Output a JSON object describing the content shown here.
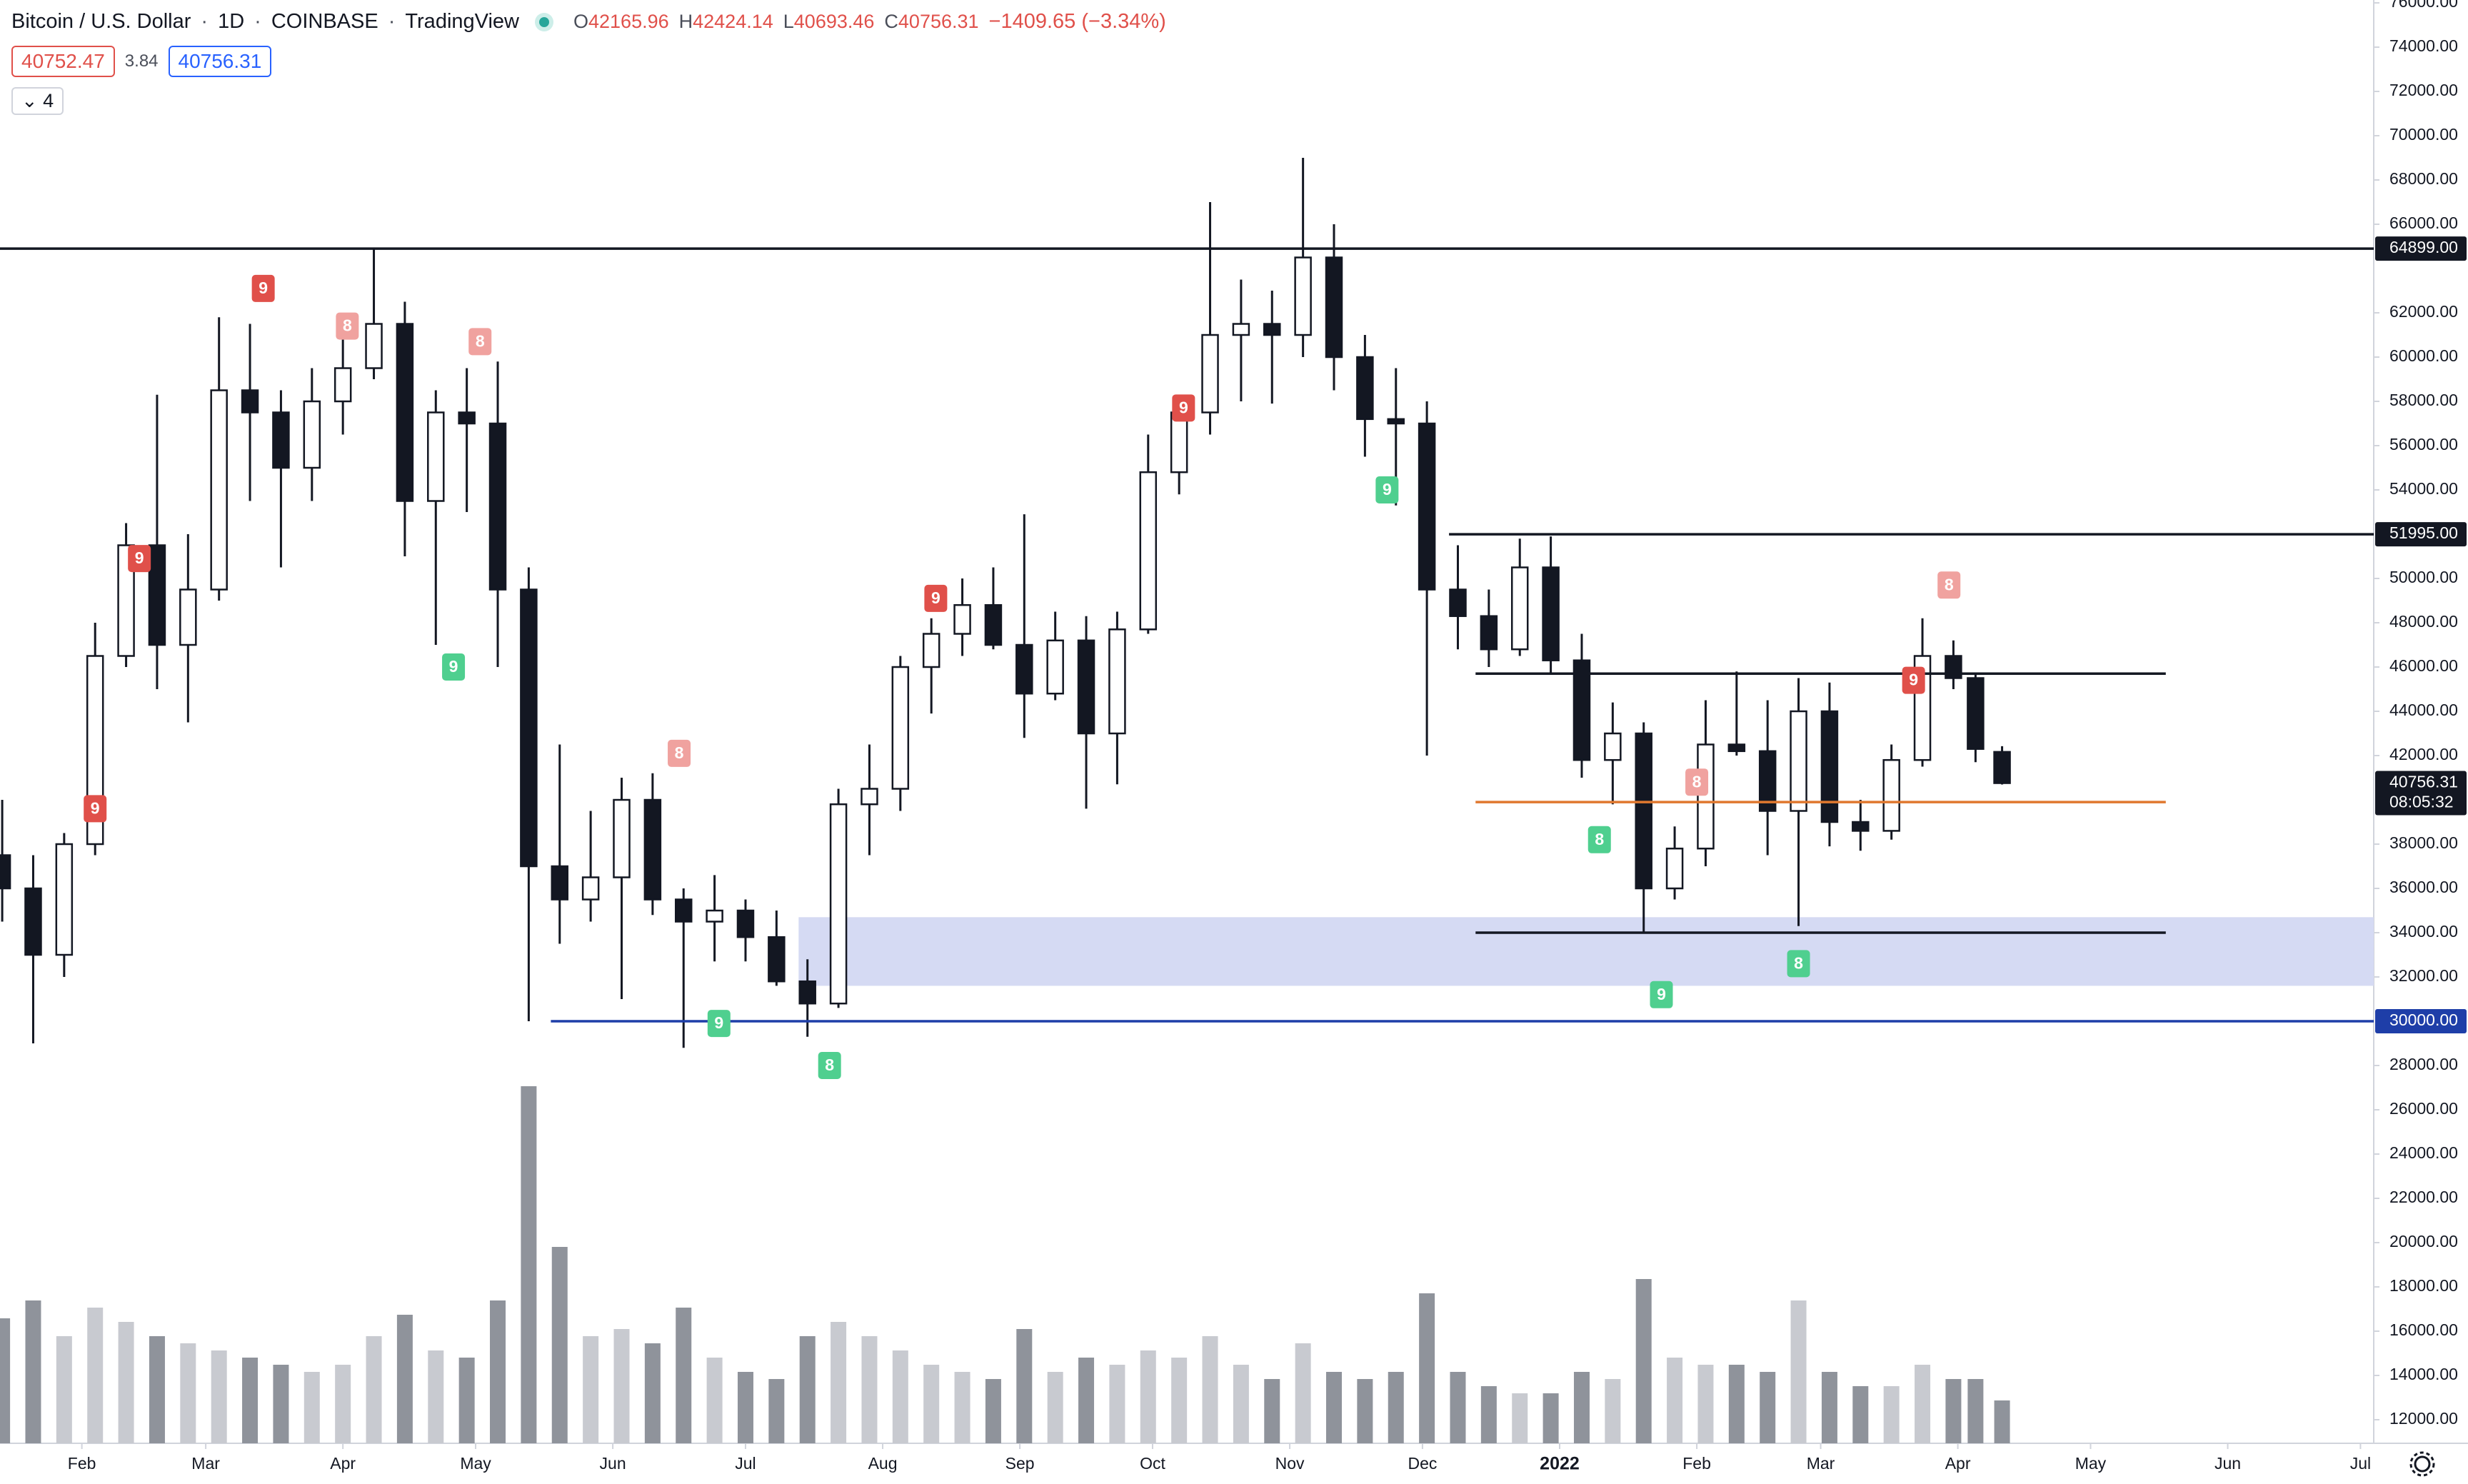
{
  "header": {
    "symbol": "Bitcoin / U.S. Dollar",
    "interval": "1D",
    "exchange": "COINBASE",
    "source": "TradingView",
    "ohlc": [
      {
        "label": "O",
        "value": "42165.96"
      },
      {
        "label": "H",
        "value": "42424.14"
      },
      {
        "label": "L",
        "value": "40693.46"
      },
      {
        "label": "C",
        "value": "40756.31"
      }
    ],
    "change": "−1409.65 (−3.34%)",
    "bid": "40752.47",
    "spread": "3.84",
    "ask": "40756.31",
    "indicators": "4"
  },
  "chart_data": {
    "type": "candlestick",
    "xlim": [
      -0.5,
      536
    ],
    "xticks": [
      {
        "value": 18,
        "label": "Feb"
      },
      {
        "value": 46,
        "label": "Mar"
      },
      {
        "value": 77,
        "label": "Apr"
      },
      {
        "value": 107,
        "label": "May"
      },
      {
        "value": 138,
        "label": "Jun"
      },
      {
        "value": 168,
        "label": "Jul"
      },
      {
        "value": 199,
        "label": "Aug"
      },
      {
        "value": 230,
        "label": "Sep"
      },
      {
        "value": 260,
        "label": "Oct"
      },
      {
        "value": 291,
        "label": "Nov"
      },
      {
        "value": 321,
        "label": "Dec"
      },
      352,
      {
        "value": 383,
        "label": "Feb"
      },
      {
        "value": 411,
        "label": "Mar"
      },
      {
        "value": 442,
        "label": "Apr"
      },
      {
        "value": 472,
        "label": "May"
      },
      {
        "value": 503,
        "label": "Jun"
      },
      {
        "value": 533,
        "label": "Jul"
      }
    ],
    "xtick_bold": [
      {
        "value": 352,
        "label": "2022"
      }
    ],
    "ylim": [
      10935,
      76130
    ],
    "yticks": [
      {
        "value": 12000,
        "label": "12000.00"
      },
      {
        "value": 14000,
        "label": "14000.00"
      },
      {
        "value": 16000,
        "label": "16000.00"
      },
      {
        "value": 18000,
        "label": "18000.00"
      },
      {
        "value": 20000,
        "label": "20000.00"
      },
      {
        "value": 22000,
        "label": "22000.00"
      },
      {
        "value": 24000,
        "label": "24000.00"
      },
      {
        "value": 26000,
        "label": "26000.00"
      },
      {
        "value": 28000,
        "label": "28000.00"
      },
      {
        "value": 32000,
        "label": "32000.00"
      },
      {
        "value": 34000,
        "label": "34000.00"
      },
      {
        "value": 36000,
        "label": "36000.00"
      },
      {
        "value": 38000,
        "label": "38000.00"
      },
      {
        "value": 42000,
        "label": "42000.00"
      },
      {
        "value": 44000,
        "label": "44000.00"
      },
      {
        "value": 46000,
        "label": "46000.00"
      },
      {
        "value": 48000,
        "label": "48000.00"
      },
      {
        "value": 50000,
        "label": "50000.00"
      },
      {
        "value": 54000,
        "label": "54000.00"
      },
      {
        "value": 56000,
        "label": "56000.00"
      },
      {
        "value": 58000,
        "label": "58000.00"
      },
      {
        "value": 60000,
        "label": "60000.00"
      },
      {
        "value": 62000,
        "label": "62000.00"
      },
      {
        "value": 66000,
        "label": "66000.00"
      },
      {
        "value": 68000,
        "label": "68000.00"
      },
      {
        "value": 70000,
        "label": "70000.00"
      },
      {
        "value": 72000,
        "label": "72000.00"
      },
      {
        "value": 74000,
        "label": "74000.00"
      },
      {
        "value": 76000,
        "label": "76000.00"
      }
    ],
    "up_color": "#ffffff",
    "down_color": "#131722",
    "wick_color": "#131722",
    "candles": {
      "x": [
        0,
        7,
        14,
        21,
        28,
        35,
        42,
        49,
        56,
        63,
        70,
        77,
        84,
        91,
        98,
        105,
        112,
        119,
        126,
        133,
        140,
        147,
        154,
        161,
        168,
        175,
        182,
        189,
        196,
        203,
        210,
        217,
        224,
        231,
        238,
        245,
        252,
        259,
        266,
        273,
        280,
        287,
        294,
        301,
        308,
        315,
        322,
        329,
        336,
        343,
        350,
        357,
        364,
        371,
        378,
        385,
        392,
        399,
        406,
        413,
        420,
        427,
        434,
        441,
        446,
        452
      ],
      "open": [
        37500,
        36000,
        33000,
        38000,
        46500,
        51500,
        47000,
        49500,
        58500,
        57500,
        55000,
        58000,
        59500,
        61500,
        53500,
        57500,
        57000,
        49500,
        37000,
        35500,
        36500,
        40000,
        35500,
        34500,
        35000,
        33800,
        31800,
        30800,
        39800,
        40500,
        46000,
        47500,
        48800,
        47000,
        44800,
        47200,
        43000,
        47700,
        54800,
        57500,
        61000,
        61500,
        61000,
        64500,
        60000,
        57200,
        57000,
        49500,
        48300,
        46800,
        50500,
        46300,
        41800,
        43000,
        36000,
        37800,
        42500,
        42200,
        39500,
        44000,
        39000,
        38600,
        41800,
        46500,
        45500,
        42165.96
      ],
      "high": [
        40000,
        37500,
        38500,
        48000,
        52500,
        58300,
        52000,
        61800,
        61500,
        58500,
        59500,
        61000,
        64900,
        62500,
        58500,
        59500,
        59800,
        50500,
        42500,
        39500,
        41000,
        41200,
        36000,
        36600,
        35500,
        35000,
        32800,
        40500,
        42500,
        46500,
        48200,
        50000,
        50500,
        52900,
        48500,
        48300,
        48500,
        56500,
        58000,
        67000,
        63500,
        63000,
        69000,
        66000,
        61000,
        59500,
        58000,
        51500,
        49500,
        51800,
        51900,
        47500,
        44400,
        43500,
        38800,
        44500,
        45800,
        44500,
        45500,
        45300,
        40000,
        42500,
        48200,
        47200,
        45700,
        42424.14
      ],
      "low": [
        34500,
        29000,
        32000,
        37500,
        46000,
        45000,
        43500,
        49000,
        53500,
        50500,
        53500,
        56500,
        59000,
        51000,
        47000,
        53000,
        46000,
        30000,
        33500,
        34500,
        31000,
        34800,
        28800,
        32700,
        32700,
        31600,
        29300,
        30600,
        37500,
        39500,
        43900,
        46500,
        46800,
        42800,
        44500,
        39600,
        40700,
        47500,
        53800,
        56500,
        58000,
        57900,
        60000,
        58500,
        55500,
        53300,
        42000,
        46800,
        46000,
        46500,
        45700,
        41000,
        39800,
        34000,
        35500,
        37000,
        42000,
        37500,
        34300,
        37900,
        37700,
        38200,
        41500,
        45000,
        41700,
        40693.46
      ],
      "close": [
        36000,
        33000,
        38000,
        46500,
        51500,
        47000,
        49500,
        58500,
        57500,
        55000,
        58000,
        59500,
        61500,
        53500,
        57500,
        57000,
        49500,
        37000,
        35500,
        36500,
        40000,
        35500,
        34500,
        35000,
        33800,
        31800,
        30800,
        39800,
        40500,
        46000,
        47500,
        48800,
        47000,
        44800,
        47200,
        43000,
        47700,
        54800,
        57500,
        61000,
        61500,
        61000,
        64500,
        60000,
        57200,
        57000,
        49500,
        48300,
        46800,
        50500,
        46300,
        41800,
        43000,
        36000,
        37800,
        42500,
        42200,
        39500,
        44000,
        39000,
        38600,
        41800,
        46500,
        45500,
        42300,
        40756.31
      ],
      "volume": [
        35,
        40,
        30,
        38,
        34,
        30,
        28,
        26,
        24,
        22,
        20,
        22,
        30,
        36,
        26,
        24,
        40,
        100,
        55,
        30,
        32,
        28,
        38,
        24,
        20,
        18,
        30,
        34,
        30,
        26,
        22,
        20,
        18,
        32,
        20,
        24,
        22,
        26,
        24,
        30,
        22,
        18,
        28,
        20,
        18,
        20,
        42,
        20,
        16,
        14,
        14,
        20,
        18,
        46,
        24,
        22,
        22,
        20,
        40,
        20,
        16,
        16,
        22,
        18,
        18,
        12
      ]
    },
    "volume_lim": [
      0,
      100
    ],
    "volume_colors": [
      "#c8cad0",
      "#8f939b"
    ],
    "zone": {
      "low": 31600,
      "high": 34700,
      "from": 180,
      "to": 536,
      "color": "#d5daf3"
    },
    "levels": [
      {
        "value": 64899,
        "label": "64899.00",
        "from": -0.5,
        "to": 536,
        "color": "#131722"
      },
      {
        "value": 51995,
        "label": "51995.00",
        "from": 327,
        "to": 536,
        "color": "#131722"
      },
      {
        "value": 30000,
        "label": "30000.00",
        "from": 124,
        "to": 536,
        "color": "#1e3ea8"
      },
      {
        "value": 45700,
        "from": 333,
        "to": 489,
        "color": "#131722"
      },
      {
        "value": 39900,
        "from": 333,
        "to": 489,
        "color": "#e0782f"
      },
      {
        "value": 34000,
        "from": 333,
        "to": 489,
        "color": "#131722"
      }
    ],
    "last_price": {
      "value": 40756.31,
      "label": "40756.31",
      "countdown": "08:05:32"
    },
    "signals": [
      {
        "x": 59,
        "y": 63100,
        "label": "9",
        "color": "#e0504a"
      },
      {
        "x": 78,
        "y": 61400,
        "label": "8",
        "color": "#f0a29f"
      },
      {
        "x": 31,
        "y": 50900,
        "label": "9",
        "color": "#e0504a"
      },
      {
        "x": 21,
        "y": 39600,
        "label": "9",
        "color": "#e0504a"
      },
      {
        "x": 108,
        "y": 60700,
        "label": "8",
        "color": "#f0a29f"
      },
      {
        "x": 153,
        "y": 42100,
        "label": "8",
        "color": "#f0a29f"
      },
      {
        "x": 211,
        "y": 49100,
        "label": "9",
        "color": "#e0504a"
      },
      {
        "x": 267,
        "y": 57700,
        "label": "9",
        "color": "#e0504a"
      },
      {
        "x": 383,
        "y": 40800,
        "label": "8",
        "color": "#f0a29f"
      },
      {
        "x": 432,
        "y": 45400,
        "label": "9",
        "color": "#e0504a"
      },
      {
        "x": 440,
        "y": 49700,
        "label": "8",
        "color": "#f0a29f"
      },
      {
        "x": 102,
        "y": 46000,
        "label": "9",
        "color": "#4fcf8f"
      },
      {
        "x": 162,
        "y": 29900,
        "label": "9",
        "color": "#4fcf8f"
      },
      {
        "x": 187,
        "y": 28000,
        "label": "8",
        "color": "#4fcf8f"
      },
      {
        "x": 313,
        "y": 54000,
        "label": "9",
        "color": "#4fcf8f"
      },
      {
        "x": 361,
        "y": 38200,
        "label": "8",
        "color": "#4fcf8f"
      },
      {
        "x": 375,
        "y": 31200,
        "label": "9",
        "color": "#4fcf8f"
      },
      {
        "x": 406,
        "y": 32600,
        "label": "8",
        "color": "#4fcf8f"
      }
    ]
  }
}
